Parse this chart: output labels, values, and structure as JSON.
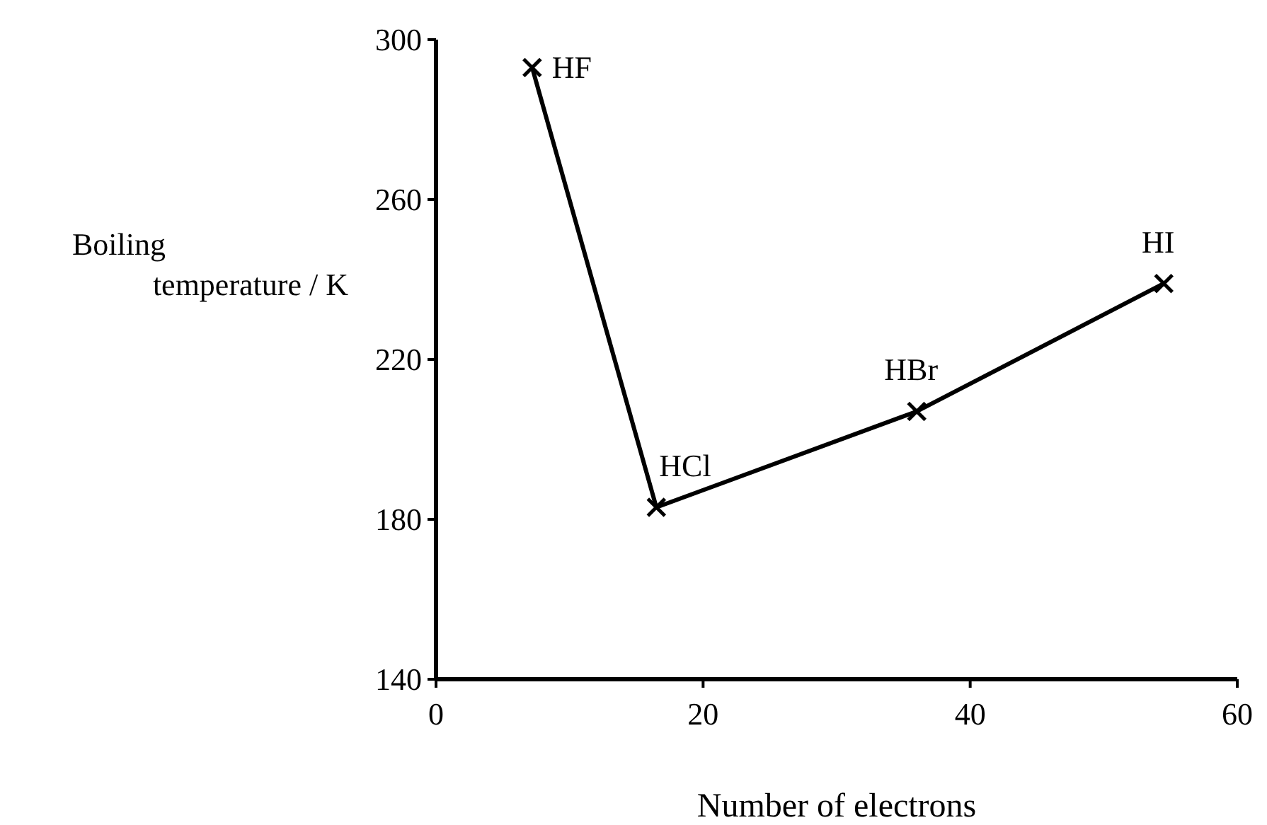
{
  "chart_data": {
    "type": "line",
    "xlabel": "Number of electrons",
    "ylabel": "Boiling temperature / K",
    "x": [
      7.2,
      16.5,
      36,
      54.5
    ],
    "values": [
      293,
      183,
      207,
      239
    ],
    "color": "#000000",
    "marker": "cross",
    "line_style": "solid",
    "xlim": [
      0,
      60
    ],
    "xticks": [
      0,
      20,
      40,
      60
    ],
    "ylim": [
      140,
      300
    ],
    "yticks": [
      140,
      180,
      220,
      260,
      300
    ],
    "grid": false,
    "annotations": [
      {
        "text": "HF",
        "x": 7.2,
        "y": 293
      },
      {
        "text": "HCl",
        "x": 16.5,
        "y": 183
      },
      {
        "text": "HBr",
        "x": 36,
        "y": 207
      },
      {
        "text": "HI",
        "x": 54.5,
        "y": 239
      }
    ]
  }
}
